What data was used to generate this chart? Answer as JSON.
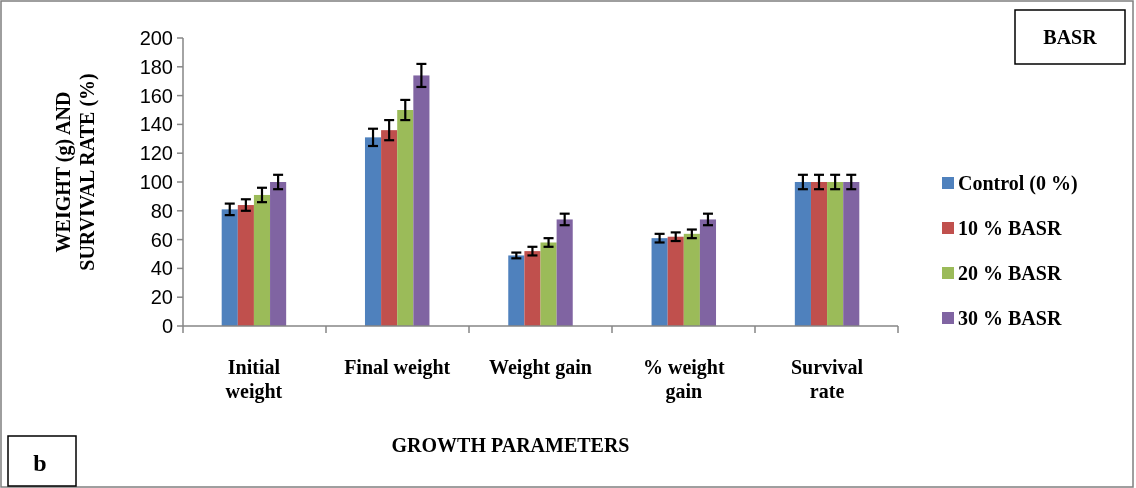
{
  "chart_data": {
    "type": "bar",
    "xlabel": "GROWTH  PARAMETERS",
    "ylabel": "WEIGHT (g) AND SURVIVAL RATE (%)",
    "categories": [
      "Initial weight",
      "Final weight",
      "Weight gain",
      "% weight gain",
      "Survival rate"
    ],
    "series": [
      {
        "name": "Control (0 %)",
        "color": "#4f81bd",
        "values": [
          81,
          131,
          49,
          61,
          100
        ],
        "errors": [
          4,
          6,
          2,
          3,
          5
        ]
      },
      {
        "name": "10 % BASR",
        "color": "#c0504d",
        "values": [
          84,
          136,
          52,
          62,
          100
        ],
        "errors": [
          4,
          7,
          3,
          3,
          5
        ]
      },
      {
        "name": "20 % BASR",
        "color": "#9bbb59",
        "values": [
          91,
          150,
          58,
          64,
          100
        ],
        "errors": [
          5,
          7,
          3,
          3,
          5
        ]
      },
      {
        "name": "30 % BASR",
        "color": "#8064a2",
        "values": [
          100,
          174,
          74,
          74,
          100
        ],
        "errors": [
          5,
          8,
          4,
          4,
          5
        ]
      }
    ],
    "ylim": [
      0,
      200
    ],
    "yticks": [
      0,
      20,
      40,
      60,
      80,
      100,
      120,
      140,
      160,
      180,
      200
    ],
    "grid": false,
    "legend": "right",
    "annotations": [
      "BASR",
      "b"
    ]
  }
}
